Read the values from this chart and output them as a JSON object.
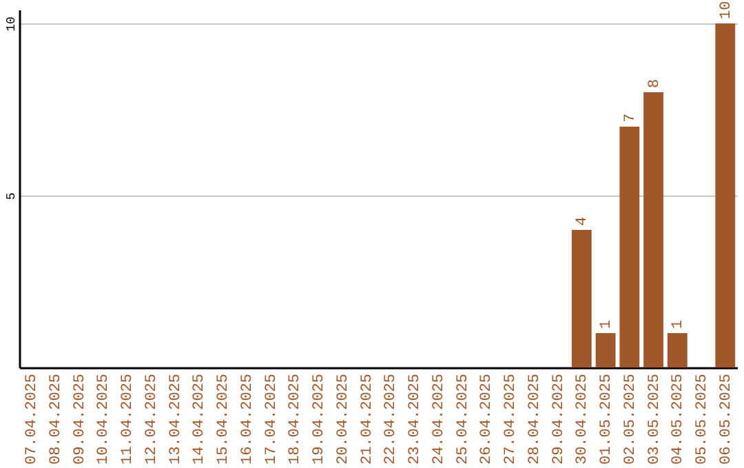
{
  "chart_data": {
    "type": "bar",
    "categories": [
      "07.04.2025",
      "08.04.2025",
      "09.04.2025",
      "10.04.2025",
      "11.04.2025",
      "12.04.2025",
      "13.04.2025",
      "14.04.2025",
      "15.04.2025",
      "16.04.2025",
      "17.04.2025",
      "18.04.2025",
      "19.04.2025",
      "20.04.2025",
      "21.04.2025",
      "22.04.2025",
      "23.04.2025",
      "24.04.2025",
      "25.04.2025",
      "26.04.2025",
      "27.04.2025",
      "28.04.2025",
      "29.04.2025",
      "30.04.2025",
      "01.05.2025",
      "02.05.2025",
      "03.05.2025",
      "04.05.2025",
      "05.05.2025",
      "06.05.2025"
    ],
    "values": [
      0,
      0,
      0,
      0,
      0,
      0,
      0,
      0,
      0,
      0,
      0,
      0,
      0,
      0,
      0,
      0,
      0,
      0,
      0,
      0,
      0,
      0,
      0,
      4,
      1,
      7,
      8,
      1,
      0,
      10
    ],
    "value_labels": [
      null,
      null,
      null,
      null,
      null,
      null,
      null,
      null,
      null,
      null,
      null,
      null,
      null,
      null,
      null,
      null,
      null,
      null,
      null,
      null,
      null,
      null,
      null,
      "4",
      "1",
      "7",
      "8",
      "1",
      null,
      "10"
    ],
    "color": "#a0582a",
    "ylim": [
      0,
      10.4
    ],
    "yticks": [
      5,
      10
    ],
    "grid": "y"
  }
}
